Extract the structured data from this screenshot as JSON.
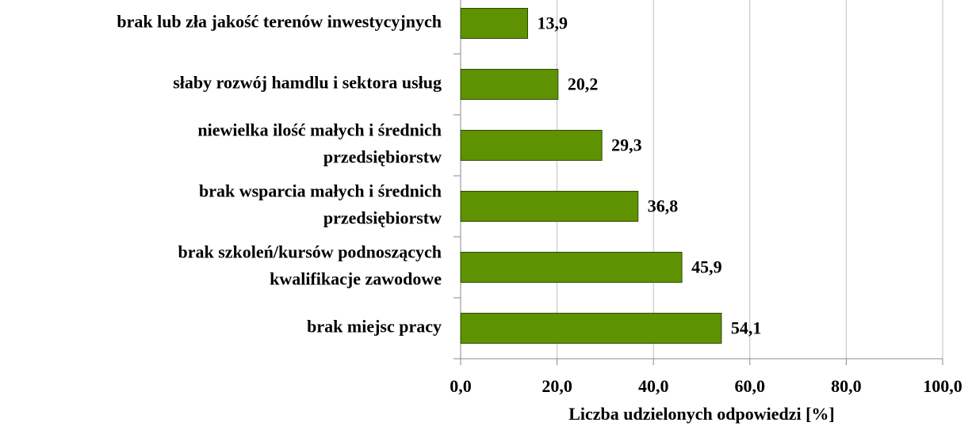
{
  "chart_data": {
    "type": "barh",
    "categories": [
      [
        "brak lub zła jakość terenów inwestycyjnych"
      ],
      [
        "słaby rozwój hamdlu i sektora usług"
      ],
      [
        "niewielka ilość małych i średnich",
        "przedsiębiorstw"
      ],
      [
        "brak wsparcia małych i średnich",
        "przedsiębiorstw"
      ],
      [
        "brak szkoleń/kursów podnoszących",
        "kwalifikacje zawodowe"
      ],
      [
        "brak miejsc pracy"
      ]
    ],
    "values": [
      13.9,
      20.2,
      29.3,
      36.8,
      45.9,
      54.1
    ],
    "value_labels": [
      "13,9",
      "20,2",
      "29,3",
      "36,8",
      "45,9",
      "54,1"
    ],
    "color": "#5f9200",
    "xlabel": "Liczba udzielonych odpowiedzi  [%]",
    "xlim": [
      0,
      100
    ],
    "xticks": [
      {
        "value": 0,
        "label": "0,0"
      },
      {
        "value": 20,
        "label": "20,0"
      },
      {
        "value": 40,
        "label": "40,0"
      },
      {
        "value": 60,
        "label": "60,0"
      },
      {
        "value": 80,
        "label": "80,0"
      },
      {
        "value": 100,
        "label": "100,0"
      }
    ],
    "grid": true
  }
}
